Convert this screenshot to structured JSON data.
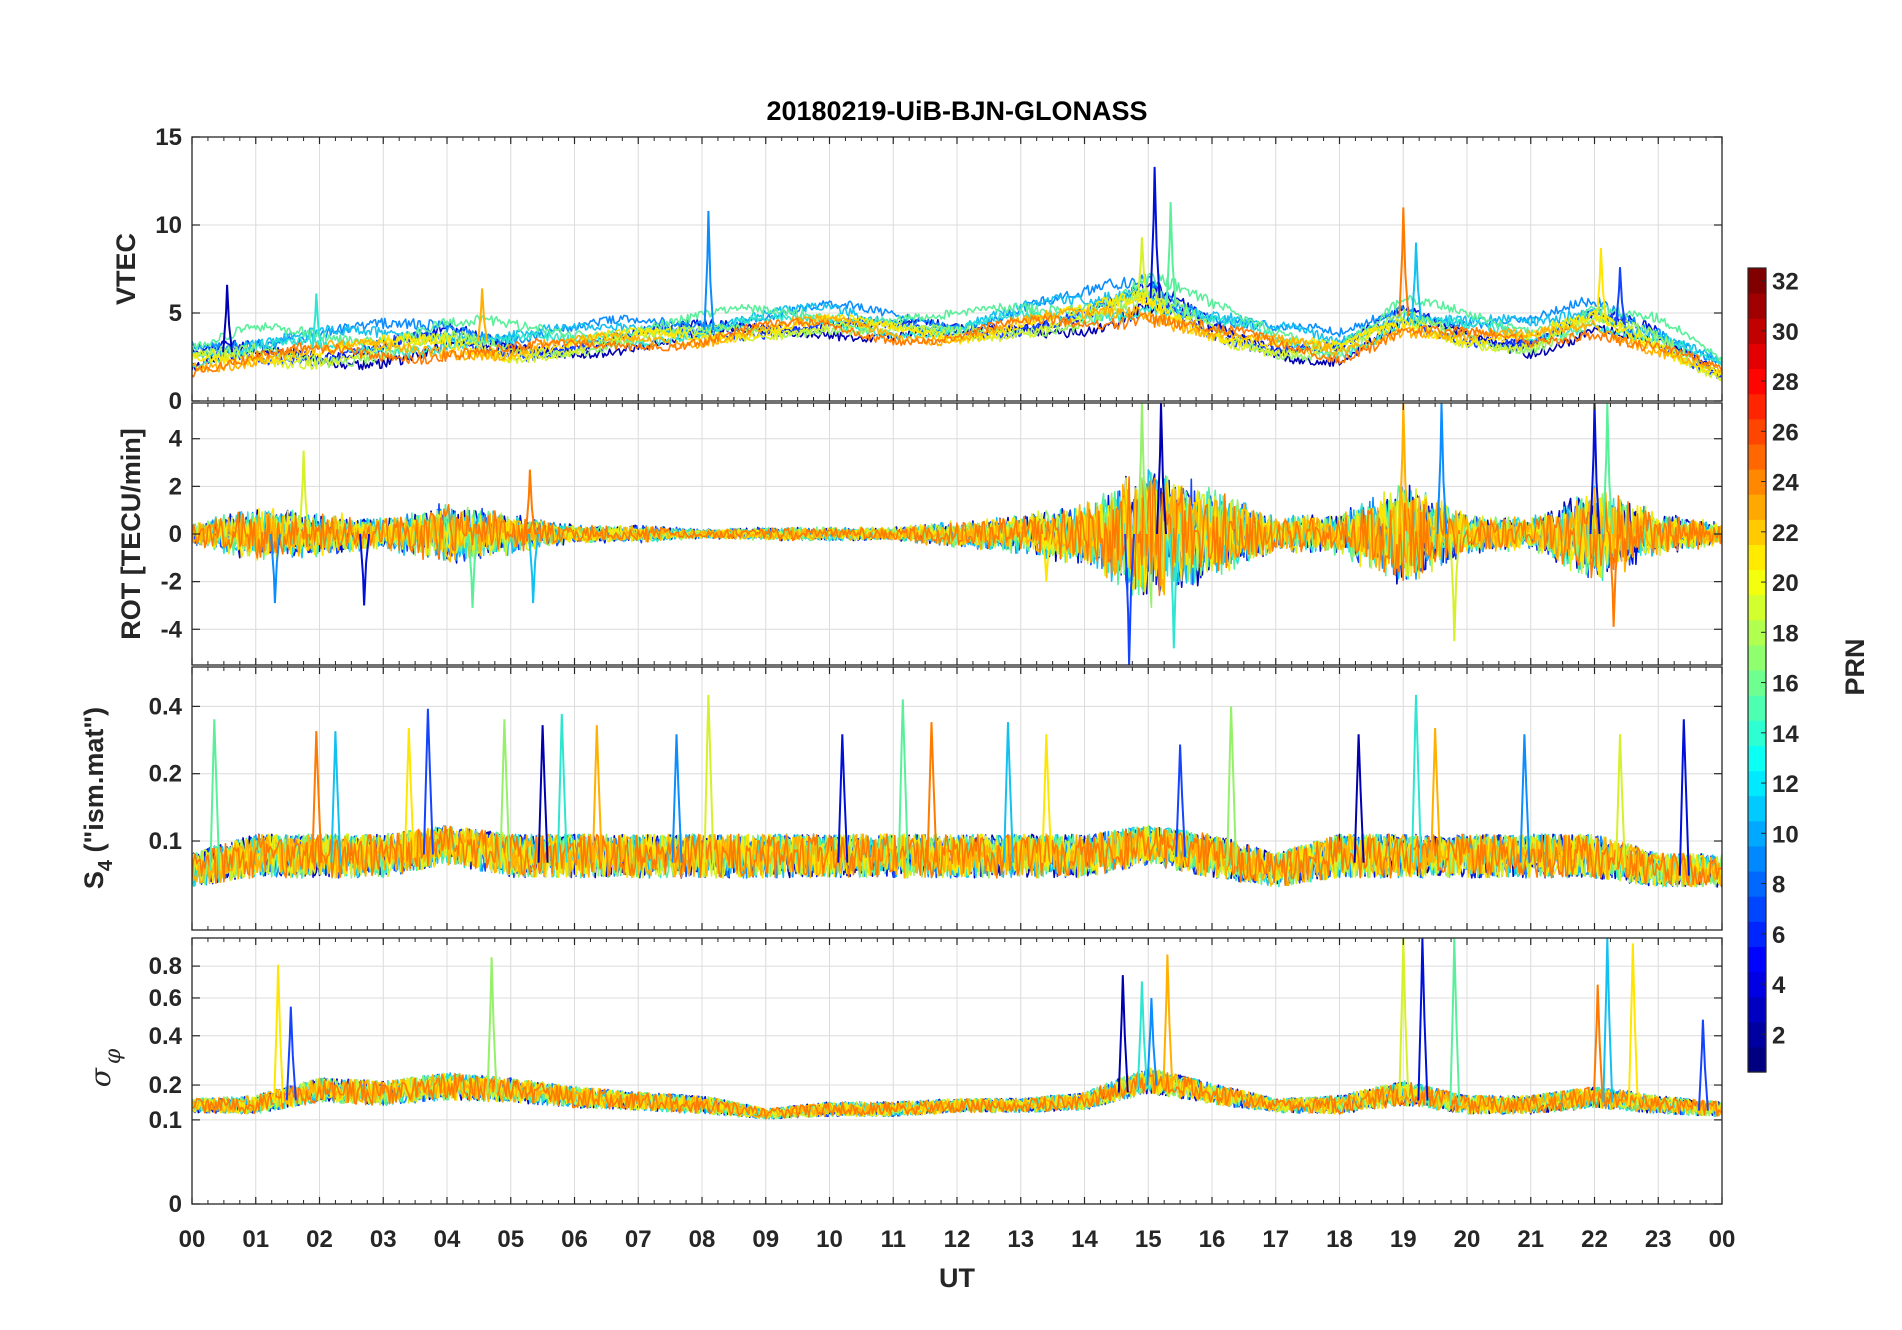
{
  "chart_data": {
    "type": "line",
    "title": "20180219-UiB-BJN-GLONASS",
    "xlabel": "UT",
    "x_ticks": [
      "00",
      "01",
      "02",
      "03",
      "04",
      "05",
      "06",
      "07",
      "08",
      "09",
      "10",
      "11",
      "12",
      "13",
      "14",
      "15",
      "16",
      "17",
      "18",
      "19",
      "20",
      "21",
      "22",
      "23",
      "00"
    ],
    "xlim_hours": [
      0,
      24
    ],
    "grid": true,
    "colorbar": {
      "label": "PRN",
      "range": [
        1,
        32
      ],
      "ticks": [
        2,
        4,
        6,
        8,
        10,
        12,
        14,
        16,
        18,
        20,
        22,
        24,
        26,
        28,
        30,
        32
      ],
      "colormap": "jet",
      "placement": "right"
    },
    "series_prns": [
      2,
      4,
      6,
      8,
      10,
      12,
      14,
      16,
      18,
      20,
      22,
      24
    ],
    "series_colors": [
      "#0000b0",
      "#0010d8",
      "#1544ff",
      "#0b8cff",
      "#14c0f0",
      "#2ee6d0",
      "#5aef9a",
      "#95f06a",
      "#d6f02a",
      "#ffe600",
      "#ffb000",
      "#ff7a00"
    ],
    "panels": [
      {
        "ylabel": "VTEC",
        "ylim": [
          0,
          15
        ],
        "yticks": [
          0,
          5,
          10,
          15
        ],
        "description_values": {
          "typical_range": [
            1,
            6
          ],
          "max_peak": 13.3,
          "max_peak_time_h": 15.1
        },
        "envelope": [
          [
            0,
            2.5,
            0.9
          ],
          [
            1,
            3.0,
            1.0
          ],
          [
            2,
            3.0,
            1.0
          ],
          [
            3,
            3.2,
            1.0
          ],
          [
            4,
            3.6,
            1.1
          ],
          [
            5,
            3.2,
            1.0
          ],
          [
            6,
            3.4,
            0.8
          ],
          [
            7,
            3.8,
            0.8
          ],
          [
            8,
            4.0,
            0.9
          ],
          [
            9,
            4.4,
            0.8
          ],
          [
            10,
            4.6,
            0.8
          ],
          [
            11,
            4.2,
            0.8
          ],
          [
            12,
            4.0,
            0.8
          ],
          [
            13,
            4.6,
            0.9
          ],
          [
            14,
            5.0,
            1.0
          ],
          [
            15,
            6.0,
            1.4
          ],
          [
            16,
            4.4,
            1.0
          ],
          [
            17,
            3.4,
            0.9
          ],
          [
            18,
            3.0,
            0.8
          ],
          [
            19,
            4.8,
            1.0
          ],
          [
            20,
            4.0,
            0.9
          ],
          [
            21,
            3.6,
            0.9
          ],
          [
            22,
            4.8,
            1.0
          ],
          [
            23,
            3.6,
            1.0
          ],
          [
            24,
            1.8,
            0.6
          ]
        ],
        "spikes": [
          [
            0.55,
            6.6
          ],
          [
            1.95,
            6.1
          ],
          [
            4.55,
            6.4
          ],
          [
            8.1,
            10.8
          ],
          [
            14.9,
            9.3
          ],
          [
            15.1,
            13.3
          ],
          [
            15.35,
            11.3
          ],
          [
            19.0,
            11.0
          ],
          [
            19.2,
            9.0
          ],
          [
            22.1,
            8.7
          ],
          [
            22.4,
            7.6
          ]
        ]
      },
      {
        "ylabel": "ROT [TECU/min]",
        "ylim": [
          -5.5,
          5.5
        ],
        "yticks": [
          -4,
          -2,
          0,
          2,
          4
        ],
        "description_values": {
          "quiet_amplitude": 0.4,
          "active_intervals_h": [
            [
              14.4,
              16.7
            ],
            [
              18.9,
              19.9
            ],
            [
              21.9,
              23.5
            ]
          ]
        },
        "envelope": [
          [
            0,
            0,
            0.5
          ],
          [
            1,
            0,
            1.2
          ],
          [
            2,
            0,
            1.0
          ],
          [
            3,
            0,
            0.7
          ],
          [
            4,
            0,
            1.4
          ],
          [
            5,
            0,
            0.9
          ],
          [
            6,
            0,
            0.4
          ],
          [
            7,
            0,
            0.4
          ],
          [
            8,
            0,
            0.2
          ],
          [
            9,
            0,
            0.3
          ],
          [
            10,
            0,
            0.3
          ],
          [
            11,
            0,
            0.3
          ],
          [
            12,
            0,
            0.6
          ],
          [
            13,
            0,
            0.9
          ],
          [
            14,
            0,
            1.4
          ],
          [
            15,
            0,
            3.2
          ],
          [
            16,
            0,
            2.0
          ],
          [
            17,
            0,
            0.8
          ],
          [
            18,
            0,
            0.9
          ],
          [
            19,
            0,
            2.4
          ],
          [
            20,
            0,
            0.9
          ],
          [
            21,
            0,
            0.7
          ],
          [
            22,
            0,
            2.2
          ],
          [
            23,
            0,
            1.0
          ],
          [
            24,
            0,
            0.5
          ]
        ],
        "spikes": [
          [
            1.3,
            -2.9
          ],
          [
            1.75,
            3.5
          ],
          [
            2.7,
            -3.0
          ],
          [
            4.4,
            -3.1
          ],
          [
            5.3,
            2.7
          ],
          [
            5.35,
            -2.9
          ],
          [
            13.4,
            -2.0
          ],
          [
            14.7,
            -5.5
          ],
          [
            14.9,
            5.5
          ],
          [
            15.2,
            5.5
          ],
          [
            15.4,
            -4.8
          ],
          [
            19.0,
            5.5
          ],
          [
            19.6,
            5.5
          ],
          [
            19.8,
            -4.5
          ],
          [
            22.0,
            5.5
          ],
          [
            22.2,
            5.5
          ],
          [
            22.3,
            -3.9
          ]
        ]
      },
      {
        "ylabel": "S4 (\"ism.mat\")",
        "ylim": [
          0.04,
          0.6
        ],
        "yticks": [
          0.1,
          0.2,
          0.4
        ],
        "description_values": {
          "baseline": 0.07,
          "max_peak": 0.45,
          "max_peak_time_h": 8.1
        },
        "envelope": [
          [
            0,
            0.07,
            0.02
          ],
          [
            1,
            0.08,
            0.03
          ],
          [
            2,
            0.08,
            0.03
          ],
          [
            3,
            0.08,
            0.03
          ],
          [
            4,
            0.09,
            0.03
          ],
          [
            5,
            0.08,
            0.03
          ],
          [
            6,
            0.08,
            0.03
          ],
          [
            7,
            0.08,
            0.03
          ],
          [
            8,
            0.08,
            0.03
          ],
          [
            9,
            0.08,
            0.03
          ],
          [
            10,
            0.08,
            0.03
          ],
          [
            11,
            0.08,
            0.03
          ],
          [
            12,
            0.08,
            0.03
          ],
          [
            13,
            0.08,
            0.03
          ],
          [
            14,
            0.08,
            0.03
          ],
          [
            15,
            0.09,
            0.03
          ],
          [
            16,
            0.08,
            0.03
          ],
          [
            17,
            0.07,
            0.02
          ],
          [
            18,
            0.08,
            0.03
          ],
          [
            19,
            0.08,
            0.03
          ],
          [
            20,
            0.08,
            0.03
          ],
          [
            21,
            0.08,
            0.03
          ],
          [
            22,
            0.08,
            0.03
          ],
          [
            23,
            0.07,
            0.02
          ],
          [
            24,
            0.07,
            0.02
          ]
        ],
        "spikes": [
          [
            0.35,
            0.35
          ],
          [
            1.95,
            0.31
          ],
          [
            2.25,
            0.31
          ],
          [
            3.4,
            0.32
          ],
          [
            3.7,
            0.39
          ],
          [
            4.9,
            0.35
          ],
          [
            5.5,
            0.33
          ],
          [
            5.8,
            0.37
          ],
          [
            6.35,
            0.33
          ],
          [
            7.6,
            0.3
          ],
          [
            8.1,
            0.45
          ],
          [
            10.2,
            0.3
          ],
          [
            11.15,
            0.43
          ],
          [
            11.6,
            0.34
          ],
          [
            12.8,
            0.34
          ],
          [
            13.4,
            0.3
          ],
          [
            15.5,
            0.27
          ],
          [
            16.3,
            0.4
          ],
          [
            18.3,
            0.3
          ],
          [
            19.2,
            0.45
          ],
          [
            19.5,
            0.32
          ],
          [
            20.9,
            0.3
          ],
          [
            22.4,
            0.3
          ],
          [
            23.4,
            0.35
          ]
        ]
      },
      {
        "ylabel": "σ φ",
        "ylim": [
          0,
          1
        ],
        "yticks": [
          0,
          0.1,
          0.2,
          0.4,
          0.6,
          0.8
        ],
        "description_values": {
          "baseline": 0.12,
          "max_peak": 1.0,
          "max_peak_times_h": [
            19.1,
            22.2
          ]
        },
        "envelope": [
          [
            0,
            0.13,
            0.03
          ],
          [
            1,
            0.13,
            0.04
          ],
          [
            2,
            0.17,
            0.06
          ],
          [
            3,
            0.16,
            0.06
          ],
          [
            4,
            0.18,
            0.07
          ],
          [
            5,
            0.17,
            0.06
          ],
          [
            6,
            0.15,
            0.05
          ],
          [
            7,
            0.14,
            0.04
          ],
          [
            8,
            0.13,
            0.04
          ],
          [
            9,
            0.11,
            0.02
          ],
          [
            10,
            0.12,
            0.03
          ],
          [
            11,
            0.12,
            0.03
          ],
          [
            12,
            0.13,
            0.03
          ],
          [
            13,
            0.13,
            0.03
          ],
          [
            14,
            0.14,
            0.04
          ],
          [
            15,
            0.2,
            0.07
          ],
          [
            16,
            0.16,
            0.05
          ],
          [
            17,
            0.13,
            0.03
          ],
          [
            18,
            0.13,
            0.04
          ],
          [
            19,
            0.16,
            0.06
          ],
          [
            20,
            0.13,
            0.04
          ],
          [
            21,
            0.13,
            0.04
          ],
          [
            22,
            0.15,
            0.05
          ],
          [
            23,
            0.13,
            0.04
          ],
          [
            24,
            0.12,
            0.03
          ]
        ],
        "spikes": [
          [
            1.35,
            0.81
          ],
          [
            1.55,
            0.55
          ],
          [
            4.7,
            0.86
          ],
          [
            14.6,
            0.74
          ],
          [
            14.9,
            0.7
          ],
          [
            15.3,
            0.88
          ],
          [
            15.05,
            0.6
          ],
          [
            19.0,
            1.0
          ],
          [
            19.3,
            1.0
          ],
          [
            19.8,
            1.0
          ],
          [
            22.05,
            0.68
          ],
          [
            22.2,
            1.0
          ],
          [
            22.6,
            0.96
          ],
          [
            23.7,
            0.48
          ]
        ]
      }
    ]
  }
}
